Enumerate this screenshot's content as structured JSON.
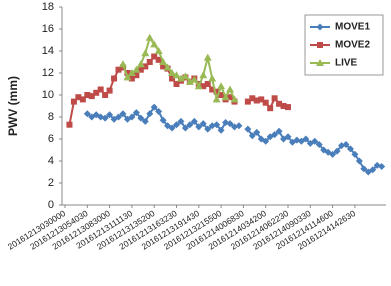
{
  "chart_data": {
    "type": "line",
    "y_label": "PWV (mm)",
    "categories": [
      "20161213030000",
      null,
      null,
      null,
      null,
      "20161213054030",
      null,
      null,
      null,
      null,
      "20161213083000",
      null,
      null,
      null,
      null,
      "20161213111130",
      null,
      null,
      null,
      null,
      "20161213135200",
      null,
      null,
      null,
      null,
      "20161213163230",
      null,
      null,
      null,
      null,
      "20161213191430",
      null,
      null,
      null,
      null,
      "20161213215500",
      null,
      null,
      null,
      null,
      "20161214006830",
      null,
      null,
      null,
      null,
      "20161214034200",
      null,
      null,
      null,
      null,
      "20161214062230",
      null,
      null,
      null,
      null,
      "20161214090330",
      null,
      null,
      null,
      null,
      "20161214114600",
      null,
      null,
      null,
      null,
      "20161214142630",
      null,
      null,
      null,
      null,
      null,
      null
    ],
    "series": [
      {
        "name": "MOVE1",
        "color": "#4a7ebb",
        "marker": "diamond",
        "values": [
          null,
          null,
          null,
          null,
          null,
          8.3,
          8.0,
          8.2,
          8.0,
          7.9,
          8.2,
          7.8,
          8.0,
          8.3,
          7.8,
          8.0,
          8.4,
          7.9,
          7.6,
          8.3,
          8.9,
          8.5,
          7.7,
          7.2,
          7.0,
          7.3,
          7.6,
          7.0,
          7.3,
          7.6,
          7.1,
          7.4,
          6.9,
          7.2,
          7.3,
          6.8,
          7.5,
          7.4,
          7.1,
          7.2,
          null,
          6.9,
          6.3,
          6.6,
          6.0,
          5.8,
          6.2,
          6.4,
          6.7,
          6.0,
          6.2,
          5.7,
          5.9,
          5.8,
          6.0,
          5.6,
          5.8,
          5.5,
          5.0,
          4.8,
          4.6,
          4.9,
          5.4,
          5.5,
          5.1,
          4.6,
          4.0,
          3.3,
          3.0,
          3.2,
          3.6,
          3.5
        ]
      },
      {
        "name": "MOVE2",
        "color": "#be4b48",
        "marker": "square",
        "values": [
          null,
          7.3,
          9.4,
          9.8,
          9.6,
          10.0,
          9.9,
          10.2,
          10.5,
          10.0,
          10.4,
          11.5,
          12.3,
          12.5,
          12.0,
          11.5,
          11.8,
          12.3,
          12.6,
          13.0,
          13.5,
          13.2,
          12.6,
          12.4,
          11.5,
          11.0,
          11.3,
          11.6,
          11.2,
          11.5,
          11.0,
          10.8,
          11.0,
          10.5,
          10.3,
          10.0,
          9.6,
          9.8,
          9.4,
          null,
          null,
          9.4,
          9.7,
          9.5,
          9.6,
          9.3,
          8.8,
          9.7,
          9.2,
          9.0,
          8.9,
          null,
          null,
          null,
          null,
          null,
          null,
          null,
          null,
          null,
          null,
          null,
          null,
          null,
          null,
          null,
          null,
          null,
          null,
          null,
          null,
          null
        ]
      },
      {
        "name": "LIVE",
        "color": "#98b954",
        "marker": "triangle",
        "values": [
          null,
          null,
          null,
          null,
          null,
          null,
          null,
          null,
          null,
          null,
          null,
          null,
          null,
          12.8,
          11.6,
          12.0,
          12.3,
          12.8,
          13.8,
          15.2,
          14.6,
          14.0,
          13.0,
          12.5,
          12.0,
          11.8,
          11.5,
          11.7,
          11.2,
          11.4,
          10.8,
          11.8,
          13.4,
          11.5,
          9.6,
          10.8,
          9.8,
          10.5,
          9.6,
          null,
          null,
          null,
          null,
          null,
          null,
          null,
          null,
          null,
          null,
          null,
          null,
          null,
          null,
          null,
          null,
          null,
          null,
          null,
          null,
          null,
          null,
          null,
          null,
          null,
          null,
          null,
          null,
          null,
          null,
          null,
          null,
          null
        ]
      }
    ],
    "ylim": [
      0,
      18
    ],
    "yticks": [
      0,
      2,
      4,
      6,
      8,
      10,
      12,
      14,
      16,
      18
    ],
    "grid": false,
    "legend": "upper right"
  }
}
